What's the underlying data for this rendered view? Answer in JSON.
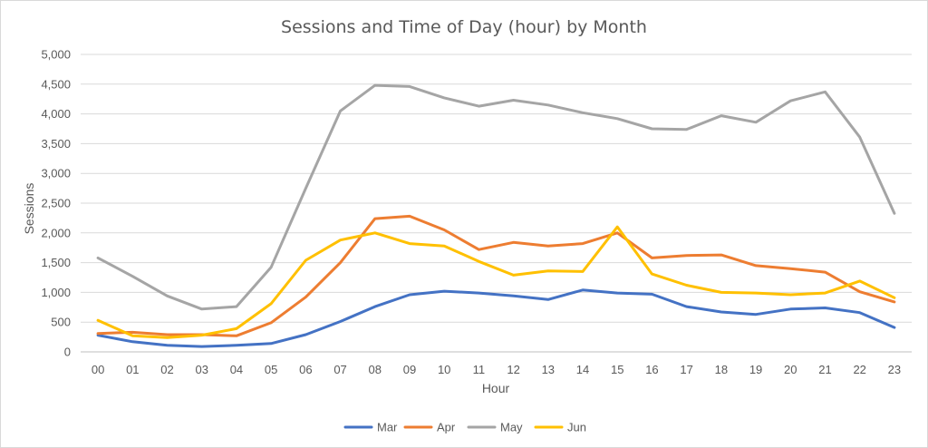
{
  "chart_data": {
    "type": "line",
    "title": "Sessions and Time of Day (hour) by Month",
    "xlabel": "Hour",
    "ylabel": "Sessions",
    "ylim": [
      0,
      5000
    ],
    "yticks": [
      0,
      500,
      1000,
      1500,
      2000,
      2500,
      3000,
      3500,
      4000,
      4500,
      5000
    ],
    "ytick_labels": [
      "0",
      "500",
      "1,000",
      "1,500",
      "2,000",
      "2,500",
      "3,000",
      "3,500",
      "4,000",
      "4,500",
      "5,000"
    ],
    "grid": true,
    "legend_position": "bottom",
    "categories": [
      "00",
      "01",
      "02",
      "03",
      "04",
      "05",
      "06",
      "07",
      "08",
      "09",
      "10",
      "11",
      "12",
      "13",
      "14",
      "15",
      "16",
      "17",
      "18",
      "19",
      "20",
      "21",
      "22",
      "23"
    ],
    "series": [
      {
        "name": "Mar",
        "color": "#4472c4",
        "values": [
          280,
          170,
          110,
          90,
          110,
          140,
          290,
          510,
          760,
          960,
          1020,
          990,
          940,
          880,
          1040,
          990,
          970,
          760,
          670,
          630,
          720,
          740,
          660,
          410
        ]
      },
      {
        "name": "Apr",
        "color": "#ed7d31",
        "values": [
          310,
          330,
          290,
          290,
          270,
          490,
          920,
          1500,
          2240,
          2280,
          2050,
          1720,
          1840,
          1780,
          1820,
          2000,
          1580,
          1620,
          1630,
          1450,
          1400,
          1340,
          1010,
          840
        ]
      },
      {
        "name": "May",
        "color": "#a5a5a5",
        "values": [
          1580,
          1270,
          940,
          720,
          760,
          1420,
          2750,
          4050,
          4480,
          4460,
          4270,
          4130,
          4230,
          4150,
          4020,
          3920,
          3750,
          3740,
          3970,
          3860,
          4220,
          4370,
          3610,
          2330
        ]
      },
      {
        "name": "Jun",
        "color": "#ffc000",
        "values": [
          530,
          270,
          240,
          280,
          390,
          810,
          1540,
          1880,
          2000,
          1820,
          1780,
          1520,
          1290,
          1360,
          1350,
          2100,
          1310,
          1120,
          1000,
          990,
          960,
          990,
          1190,
          910
        ]
      }
    ]
  }
}
